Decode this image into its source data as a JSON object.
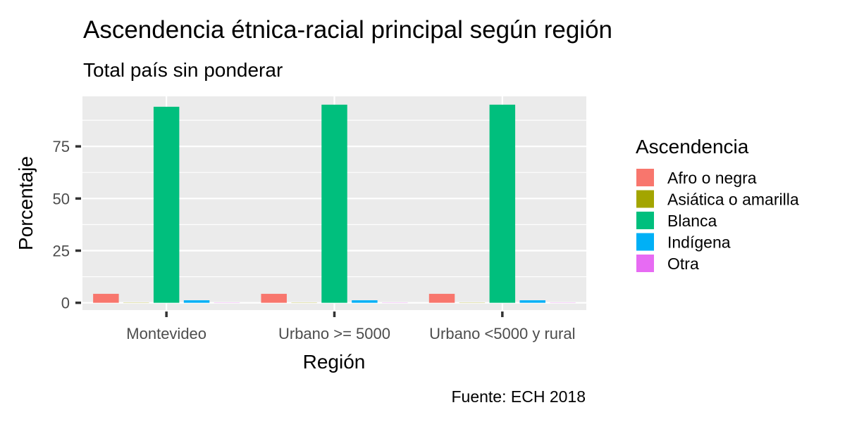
{
  "chart_data": {
    "type": "bar",
    "title": "Ascendencia étnica-racial principal según región",
    "subtitle": "Total país sin ponderar",
    "xlabel": "Región",
    "ylabel": "Porcentaje",
    "caption": "Fuente: ECH 2018",
    "categories": [
      "Montevideo",
      "Urbano >= 5000",
      "Urbano <5000 y rural"
    ],
    "ylim": [
      -3.5,
      99
    ],
    "yticks": [
      0,
      25,
      50,
      75
    ],
    "grid": true,
    "legend": {
      "title": "Ascendencia",
      "position": "right"
    },
    "series": [
      {
        "name": "Afro o negra",
        "color": "#F8766D",
        "values": [
          4.3,
          4.3,
          4.3
        ]
      },
      {
        "name": "Asiática o amarilla",
        "color": "#A3A500",
        "values": [
          0.1,
          0.1,
          0.1
        ]
      },
      {
        "name": "Blanca",
        "color": "#00BF7D",
        "values": [
          94.0,
          95.0,
          95.0
        ]
      },
      {
        "name": "Indígena",
        "color": "#00B0F6",
        "values": [
          1.2,
          1.2,
          1.2
        ]
      },
      {
        "name": "Otra",
        "color": "#E76BF3",
        "values": [
          0.1,
          0.1,
          0.1
        ]
      }
    ]
  }
}
